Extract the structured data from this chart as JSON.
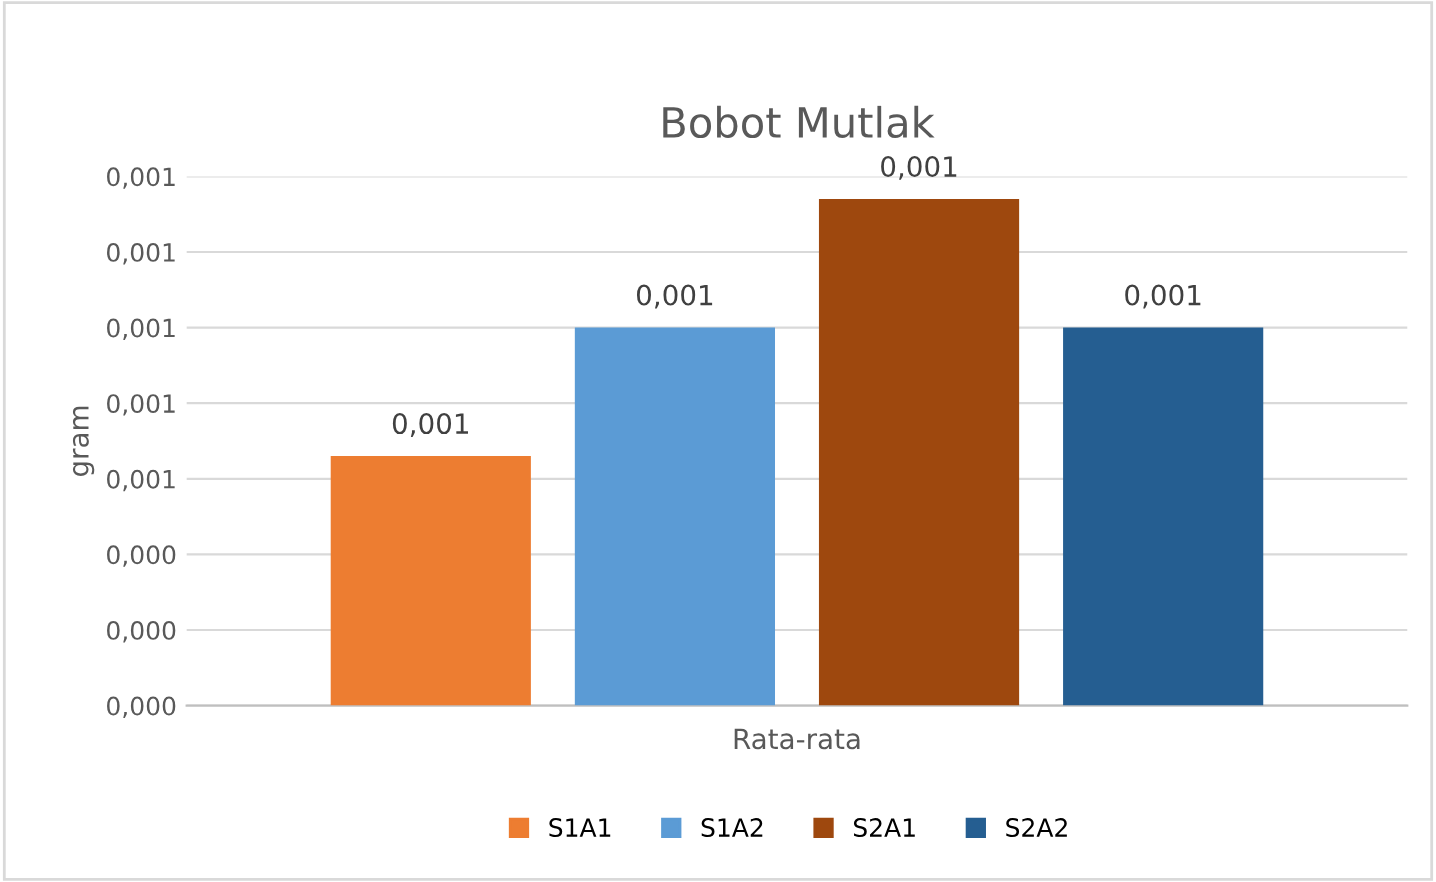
{
  "chart_data": {
    "type": "bar",
    "title": "Bobot Mutlak",
    "ylabel": "gram",
    "categories": [
      "Rata-rata"
    ],
    "series": [
      {
        "name": "S1A1",
        "color": "#ed7d31",
        "values": [
          0.00066
        ],
        "value_labels": [
          "0,001"
        ]
      },
      {
        "name": "S1A2",
        "color": "#5b9bd5",
        "values": [
          0.001
        ],
        "value_labels": [
          "0,001"
        ]
      },
      {
        "name": "S2A1",
        "color": "#9e480e",
        "values": [
          0.00134
        ],
        "value_labels": [
          "0,001"
        ]
      },
      {
        "name": "S2A2",
        "color": "#255e91",
        "values": [
          0.001
        ],
        "value_labels": [
          "0,001"
        ]
      }
    ],
    "ylim": [
      0,
      0.0014
    ],
    "yticks": [
      {
        "value": 0,
        "label": "0,000"
      },
      {
        "value": 0.0002,
        "label": "0,000"
      },
      {
        "value": 0.0004,
        "label": "0,000"
      },
      {
        "value": 0.0006,
        "label": "0,001"
      },
      {
        "value": 0.0008,
        "label": "0,001"
      },
      {
        "value": 0.001,
        "label": "0,001"
      },
      {
        "value": 0.0012,
        "label": "0,001"
      },
      {
        "value": 0.0014,
        "label": "0,001"
      }
    ],
    "grid": "y",
    "legend": "bottom"
  }
}
